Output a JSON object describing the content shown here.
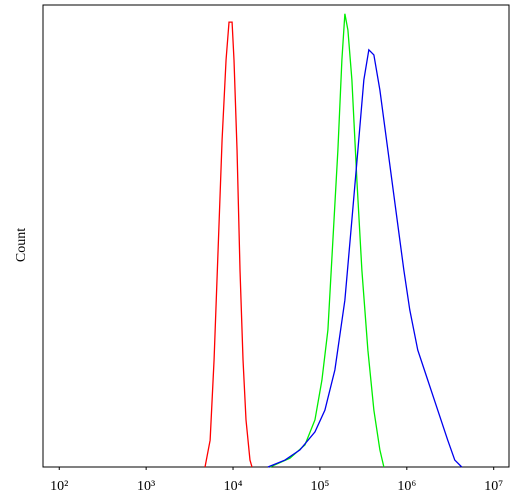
{
  "chart_data": {
    "type": "line",
    "y_label": "Count",
    "xscale": "log",
    "xlim": [
      65,
      15000000
    ],
    "ylim": [
      0,
      100
    ],
    "xticks": [
      {
        "value": 100,
        "label": "10²"
      },
      {
        "value": 1000,
        "label": "10³"
      },
      {
        "value": 10000,
        "label": "10⁴"
      },
      {
        "value": 100000,
        "label": "10⁵"
      },
      {
        "value": 1000000,
        "label": "10⁶"
      },
      {
        "value": 10000000,
        "label": "10⁷"
      }
    ],
    "grid": false,
    "series": [
      {
        "color": "#ff0000",
        "x": [
          4760,
          5450,
          6050,
          6730,
          7480,
          8310,
          8990,
          9750,
          10260,
          11120,
          12030,
          13030,
          14100,
          15670,
          16530
        ],
        "values": [
          0,
          5.8,
          23.2,
          47.0,
          70.8,
          88.1,
          96.3,
          96.3,
          88.1,
          68.6,
          42.6,
          23.2,
          10.2,
          1.5,
          0
        ]
      },
      {
        "color": "#00ee00",
        "x": [
          26610,
          45190,
          67270,
          87670,
          105400,
          123600,
          141000,
          161000,
          179000,
          193700,
          209900,
          233300,
          266300,
          304000,
          356400,
          417800,
          489800,
          544500
        ],
        "values": [
          0,
          1.9,
          4.8,
          10.2,
          18.8,
          29.7,
          49.1,
          68.6,
          88.1,
          98.1,
          94.6,
          83.8,
          62.1,
          42.6,
          25.3,
          12.3,
          3.7,
          0
        ]
      },
      {
        "color": "#0000ee",
        "x": [
          25230,
          39630,
          58880,
          87670,
          114100,
          148600,
          193700,
          233300,
          273500,
          320400,
          365600,
          417800,
          489800,
          605300,
          748000,
          924700,
          1082000,
          1337000,
          1742000,
          2270000,
          2958000,
          3565000,
          4286000
        ],
        "values": [
          0,
          1.5,
          3.7,
          7.6,
          12.3,
          21.0,
          36.1,
          53.5,
          68.6,
          83.8,
          90.3,
          89.2,
          81.6,
          68.6,
          55.6,
          42.6,
          34.0,
          25.3,
          18.8,
          12.3,
          5.8,
          1.5,
          0
        ]
      }
    ]
  }
}
